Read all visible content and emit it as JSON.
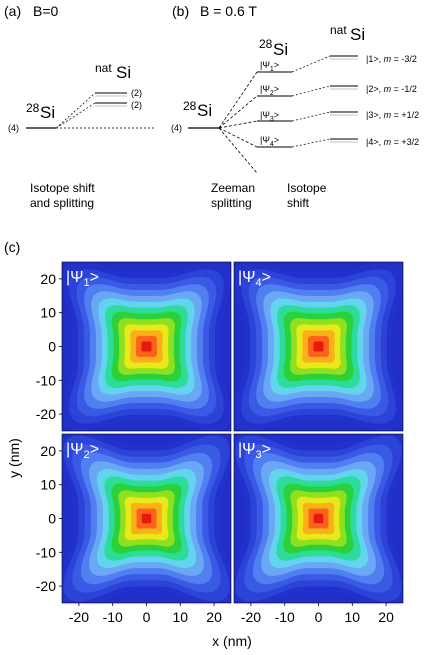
{
  "panel_a": {
    "label": "(a)",
    "field": "B=0",
    "si28": "28",
    "si28_sym": "Si",
    "natsi_sup": "nat",
    "natsi_sym": "Si",
    "deg4": "(4)",
    "deg2a": "(2)",
    "deg2b": "(2)",
    "caption_line1": "Isotope shift",
    "caption_line2": "and splitting"
  },
  "panel_b": {
    "label": "(b)",
    "field": "B = 0.6 T",
    "si28_sup": "28",
    "si28_sym": "Si",
    "si28_left_sup": "28",
    "si28_left_sym": "Si",
    "natsi_sup": "nat",
    "natsi_sym": "Si",
    "deg4": "(4)",
    "states": [
      {
        "psi": "|Ψ",
        "sub": "1",
        "close": ">",
        "level": "|1>, ",
        "m": "m",
        "mval": " = -3/2"
      },
      {
        "psi": "|Ψ",
        "sub": "2",
        "close": ">",
        "level": "|2>, ",
        "m": "m",
        "mval": " = -1/2"
      },
      {
        "psi": "|Ψ",
        "sub": "3",
        "close": ">",
        "level": "|3>, ",
        "m": "m",
        "mval": " = +1/2"
      },
      {
        "psi": "|Ψ",
        "sub": "4",
        "close": ">",
        "level": "|4>, ",
        "m": "m",
        "mval": " = +3/2"
      }
    ],
    "caption_zeeman_1": "Zeeman",
    "caption_zeeman_2": "splitting",
    "caption_iso_1": "Isotope",
    "caption_iso_2": "shift"
  },
  "panel_c": {
    "label": "(c)",
    "ylabel": "y (nm)",
    "xlabel": "x (nm)",
    "yticks": [
      "20",
      "10",
      "0",
      "-10",
      "-20"
    ],
    "xticks": [
      "-20",
      "-10",
      "0",
      "10",
      "20"
    ],
    "maps": [
      {
        "psi": "|Ψ",
        "sub": "1",
        "close": ">"
      },
      {
        "psi": "|Ψ",
        "sub": "4",
        "close": ">"
      },
      {
        "psi": "|Ψ",
        "sub": "2",
        "close": ">"
      },
      {
        "psi": "|Ψ",
        "sub": "3",
        "close": ">"
      }
    ],
    "colors": {
      "background": "#1f2fc8",
      "levels": [
        "#2331cc",
        "#2c43d8",
        "#3a5ae6",
        "#4f7ff0",
        "#6aa7f5",
        "#62d4ee",
        "#2ddb9a",
        "#2bd13a",
        "#8fe01e",
        "#e8e81a",
        "#fbb01a",
        "#f9641a",
        "#e81a10"
      ]
    }
  }
}
